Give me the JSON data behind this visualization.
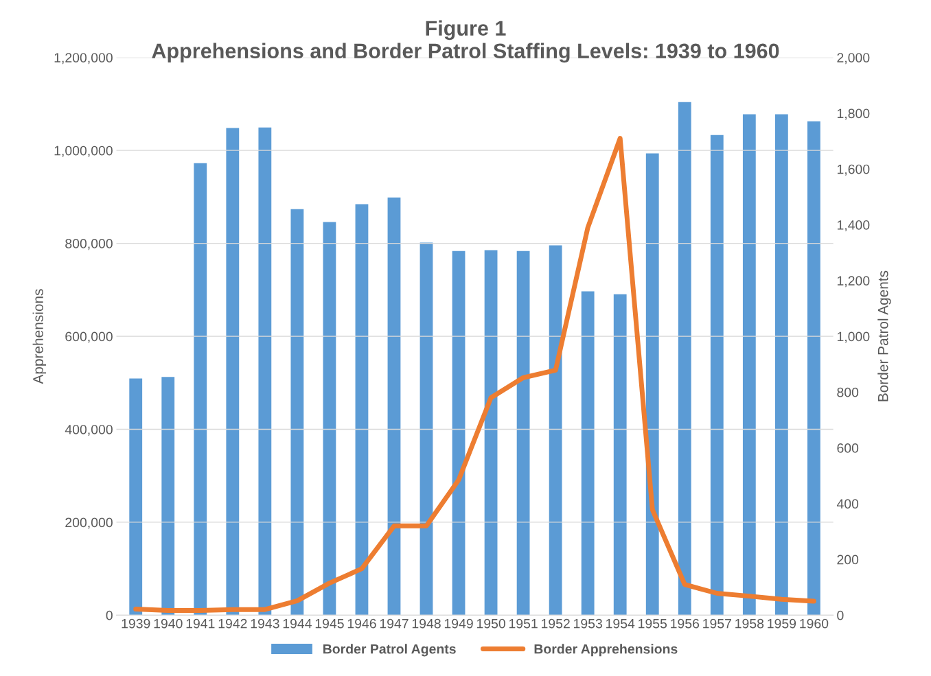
{
  "chart_data": {
    "type": "bar",
    "title": "Figure 1\nApprehensions and Border Patrol Staffing Levels: 1939 to 1960",
    "ylabel": "Apprehensions",
    "y2label": "Border Patrol Agents",
    "categories": [
      "1939",
      "1940",
      "1941",
      "1942",
      "1943",
      "1944",
      "1945",
      "1946",
      "1947",
      "1948",
      "1949",
      "1950",
      "1951",
      "1952",
      "1953",
      "1954",
      "1955",
      "1956",
      "1957",
      "1958",
      "1959",
      "1960"
    ],
    "series": [
      {
        "name": "Border Patrol Agents",
        "axis": "y2",
        "color": "#5b9bd5",
        "values": [
          849,
          854,
          1621,
          1747,
          1749,
          1456,
          1410,
          1474,
          1498,
          1336,
          1306,
          1309,
          1306,
          1326,
          1161,
          1151,
          1656,
          1840,
          1722,
          1796,
          1796,
          1771
        ]
      },
      {
        "name": "Border Apprehensions",
        "type": "line",
        "axis": "y",
        "color": "#ed7d31",
        "values": [
          13000,
          10000,
          10000,
          12000,
          12000,
          31000,
          69000,
          100000,
          192000,
          192000,
          291000,
          468000,
          511000,
          527000,
          834000,
          1026000,
          227000,
          66000,
          47000,
          41000,
          34000,
          30000
        ]
      }
    ],
    "ylim": [
      0,
      1200000
    ],
    "yticks": [
      0,
      {
        "value": 200000,
        "label": "200,000"
      },
      {
        "value": 400000,
        "label": "400,000"
      },
      {
        "value": 600000,
        "label": "600,000"
      },
      {
        "value": 800000,
        "label": "800,000"
      },
      {
        "value": 1000000,
        "label": "1,000,000"
      },
      {
        "value": 1200000,
        "label": "1,200,000"
      }
    ],
    "y2lim": [
      0,
      2000
    ],
    "y2ticks": [
      0,
      200,
      400,
      600,
      800,
      {
        "value": 1000,
        "label": "1,000"
      },
      {
        "value": 1200,
        "label": "1,200"
      },
      {
        "value": 1400,
        "label": "1,400"
      },
      {
        "value": 1600,
        "label": "1,600"
      },
      {
        "value": 1800,
        "label": "1,800"
      },
      {
        "value": 2000,
        "label": "2,000"
      }
    ],
    "grid": "y",
    "legend": "bottom",
    "marker": "none",
    "line_style": "solid"
  }
}
